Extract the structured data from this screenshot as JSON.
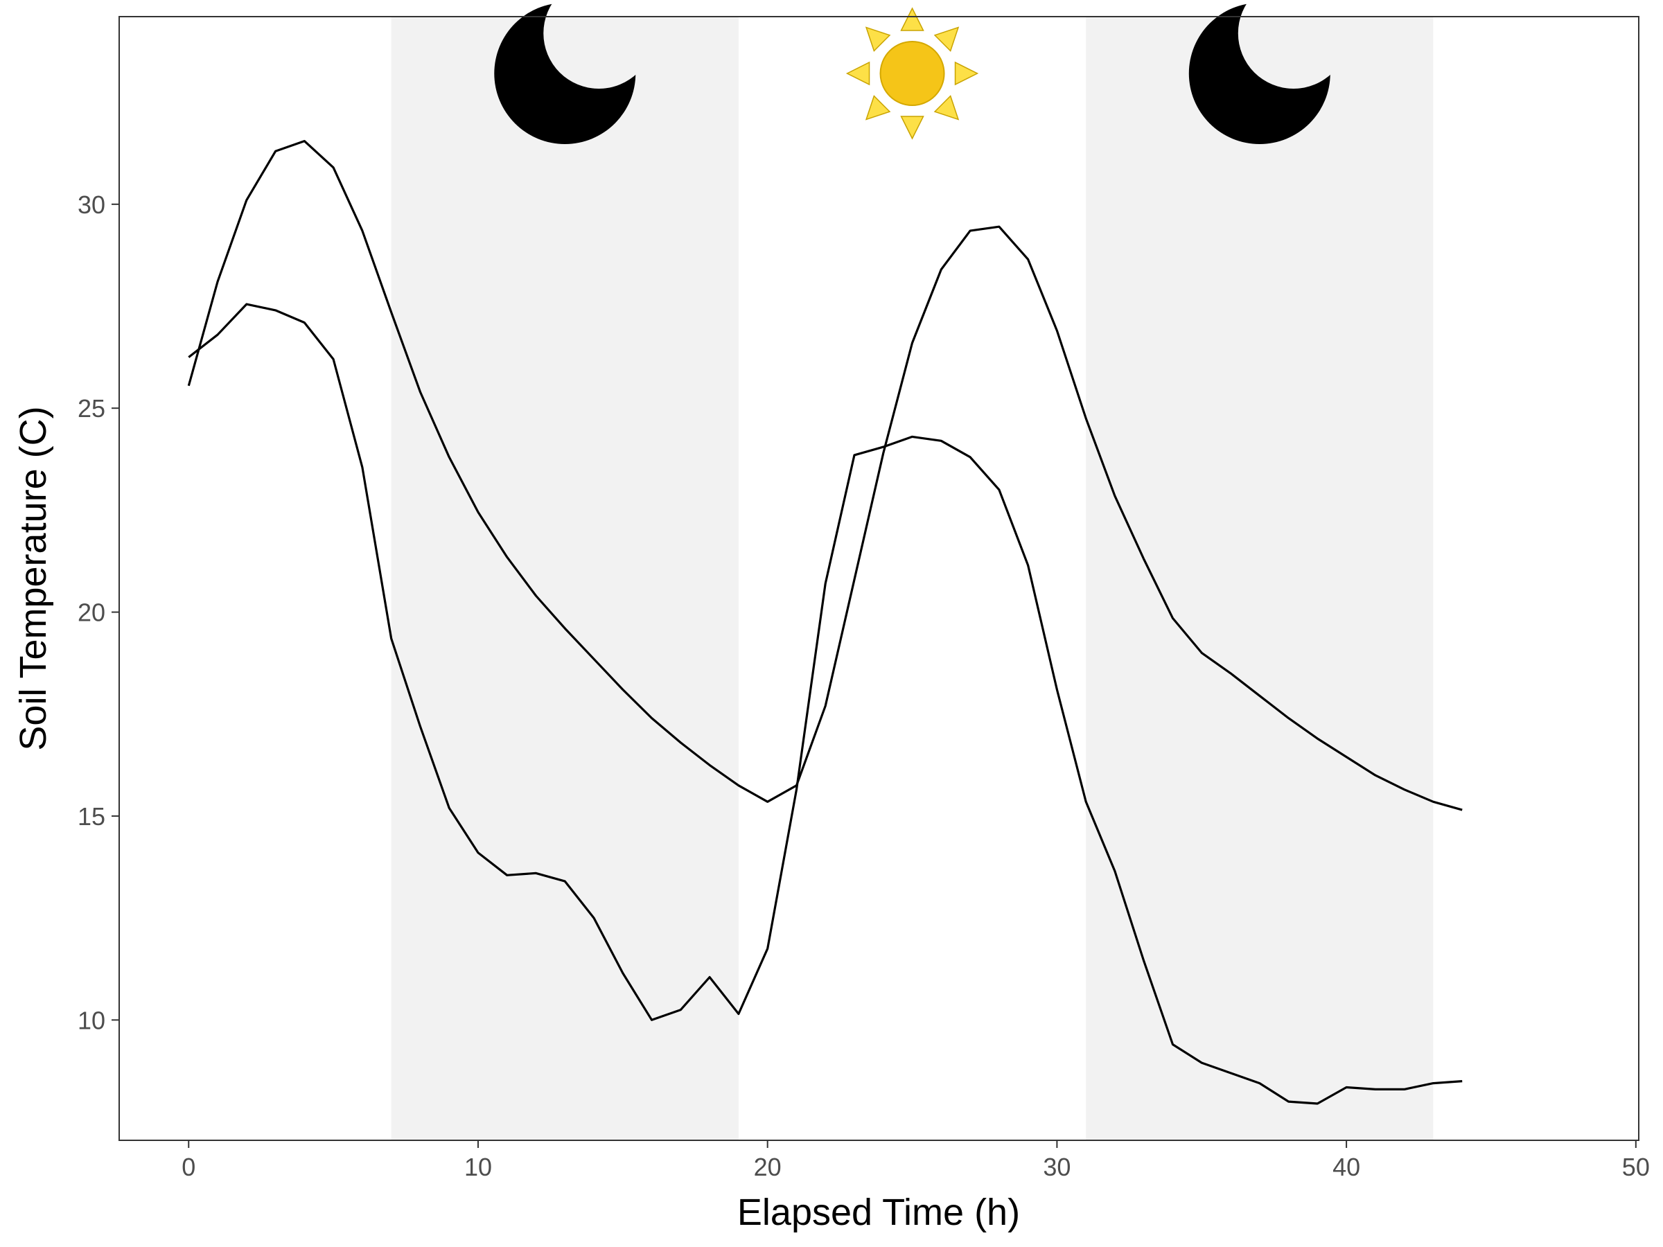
{
  "chart_data": {
    "type": "line",
    "xlabel": "Elapsed Time (h)",
    "ylabel": "Soil Temperature (C)",
    "xlim": [
      -2.4,
      50.1
    ],
    "ylim": [
      7.05,
      34.6
    ],
    "x_ticks": [
      0,
      10,
      20,
      30,
      40,
      50
    ],
    "y_ticks": [
      10,
      15,
      20,
      25,
      30
    ],
    "grid": false,
    "legend": "none",
    "night_periods": [
      [
        7,
        19
      ],
      [
        31,
        43
      ]
    ],
    "icons": [
      {
        "name": "moon-icon",
        "x": 13
      },
      {
        "name": "sun-icon",
        "x": 25
      },
      {
        "name": "moon-icon",
        "x": 37
      }
    ],
    "colors": {
      "line": "#000000",
      "night_band": "#f2f2f2",
      "sun_fill": "#f5c518",
      "sun_ray": "#fde047",
      "moon": "#000000"
    },
    "x": [
      0,
      1,
      2,
      3,
      4,
      5,
      6,
      7,
      8,
      9,
      10,
      11,
      12,
      13,
      14,
      15,
      16,
      17,
      18,
      19,
      20,
      21,
      22,
      23,
      24,
      25,
      26,
      27,
      28,
      29,
      30,
      31,
      32,
      33,
      34,
      35,
      36,
      37,
      38,
      39,
      40,
      41,
      42,
      43,
      44
    ],
    "series": [
      {
        "values": [
          25.55,
          28.1,
          30.1,
          31.3,
          31.55,
          30.9,
          29.35,
          27.35,
          25.4,
          23.8,
          22.45,
          21.35,
          20.4,
          19.6,
          18.85,
          18.1,
          17.4,
          16.8,
          16.25,
          15.75,
          15.35,
          15.75,
          17.7,
          20.8,
          23.9,
          26.6,
          28.4,
          29.35,
          29.45,
          28.65,
          26.9,
          24.75,
          22.85,
          21.3,
          19.85,
          19.0,
          18.5,
          17.95,
          17.4,
          16.9,
          16.45,
          16.0,
          15.65,
          15.35,
          15.15
        ]
      },
      {
        "values": [
          26.25,
          26.8,
          27.55,
          27.4,
          27.1,
          26.2,
          23.55,
          19.35,
          17.2,
          15.2,
          14.1,
          13.55,
          13.6,
          13.4,
          12.5,
          11.15,
          10.0,
          10.25,
          11.05,
          10.15,
          11.75,
          15.65,
          20.7,
          23.85,
          24.05,
          24.3,
          24.2,
          23.8,
          23.0,
          21.15,
          18.1,
          15.35,
          13.65,
          11.45,
          9.4,
          8.95,
          8.7,
          8.45,
          8.0,
          7.95,
          8.35,
          8.3,
          8.3,
          8.45,
          8.5
        ]
      }
    ]
  }
}
